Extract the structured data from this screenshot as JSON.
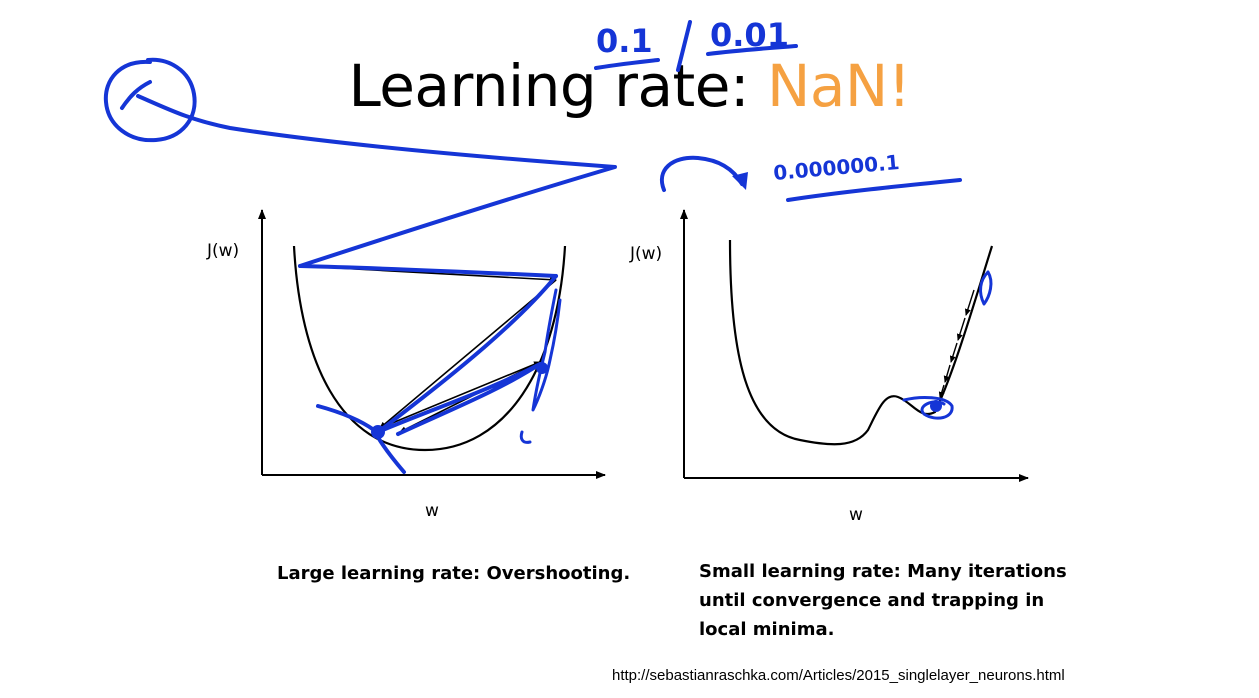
{
  "slide": {
    "title_prefix": "Learning rate: ",
    "title_highlight": "NaN!",
    "accent_color": "#F5A142",
    "ink_color": "#1535D6"
  },
  "left_panel": {
    "ylabel": "J(w)",
    "xlabel": "w",
    "caption": "Large learning rate: Overshooting."
  },
  "right_panel": {
    "ylabel": "J(w)",
    "xlabel": "w",
    "caption_lines": [
      "Small learning rate: Many iterations",
      "until convergence and trapping in",
      "local minima."
    ]
  },
  "annotations": {
    "value_a": "0.1",
    "value_b": "0.01",
    "value_c": "0.000000.1"
  },
  "source_url": "http://sebastianraschka.com/Articles/2015_singlelayer_neurons.html"
}
